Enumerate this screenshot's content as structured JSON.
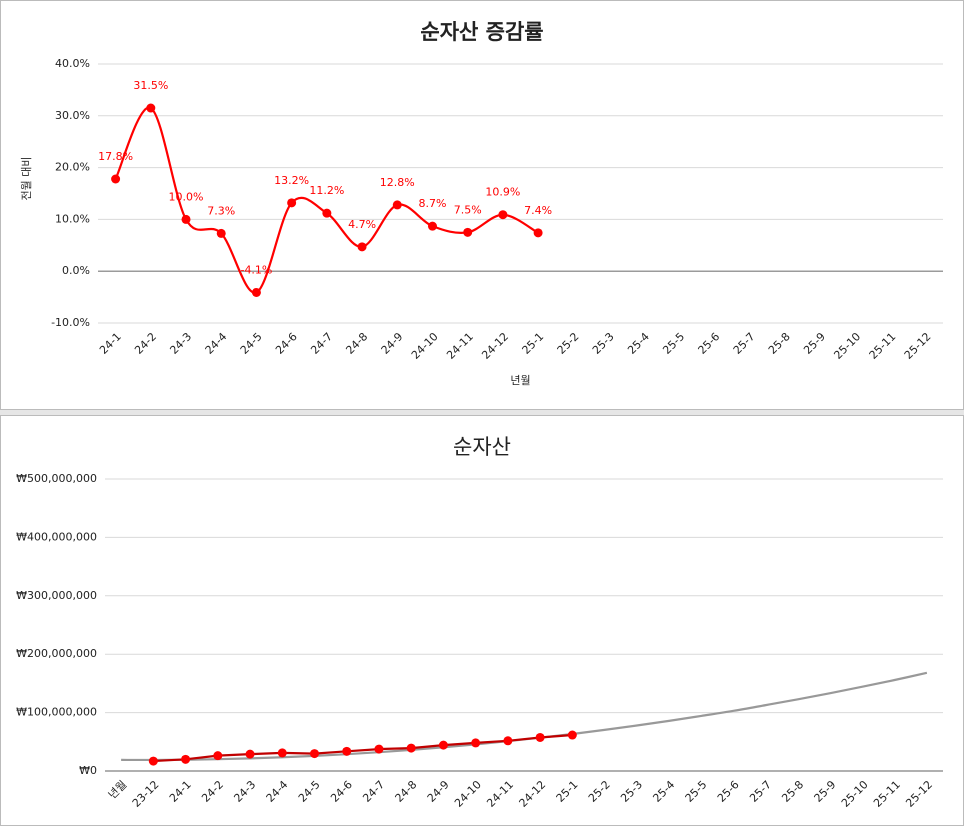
{
  "chart_data": [
    {
      "type": "line",
      "title": "순자산 증감률",
      "x_label": "년월",
      "y_label": "전월 대비",
      "categories": [
        "24-1",
        "24-2",
        "24-3",
        "24-4",
        "24-5",
        "24-6",
        "24-7",
        "24-8",
        "24-9",
        "24-10",
        "24-11",
        "24-12",
        "25-1",
        "25-2",
        "25-3",
        "25-4",
        "25-5",
        "25-6",
        "25-7",
        "25-8",
        "25-9",
        "25-10",
        "25-11",
        "25-12"
      ],
      "series": [
        {
          "color": "#ff0000",
          "marker_color": "#ff0000",
          "markers": true,
          "smooth": true,
          "values": [
            17.8,
            31.5,
            10.0,
            7.3,
            -4.1,
            13.2,
            11.2,
            4.7,
            12.8,
            8.7,
            7.5,
            10.9,
            7.4,
            null,
            null,
            null,
            null,
            null,
            null,
            null,
            null,
            null,
            null,
            null
          ],
          "value_labels": [
            "17.8%",
            "31.5%",
            "10.0%",
            "7.3%",
            "-4.1%",
            "13.2%",
            "11.2%",
            "4.7%",
            "12.8%",
            "8.7%",
            "7.5%",
            "10.9%",
            "7.4%",
            null,
            null,
            null,
            null,
            null,
            null,
            null,
            null,
            null,
            null,
            null
          ]
        }
      ],
      "ylim": [
        -10,
        40
      ],
      "yticks": [
        {
          "value": -10,
          "label": "-10.0%"
        },
        {
          "value": 0,
          "label": "0.0%"
        },
        {
          "value": 10,
          "label": "10.0%"
        },
        {
          "value": 20,
          "label": "20.0%"
        },
        {
          "value": 30,
          "label": "30.0%"
        },
        {
          "value": 40,
          "label": "40.0%"
        }
      ],
      "grid": true
    },
    {
      "type": "line",
      "title": "순자산",
      "categories": [
        "년월",
        "23-12",
        "24-1",
        "24-2",
        "24-3",
        "24-4",
        "24-5",
        "24-6",
        "24-7",
        "24-8",
        "24-9",
        "24-10",
        "24-11",
        "24-12",
        "25-1",
        "25-2",
        "25-3",
        "25-4",
        "25-5",
        "25-6",
        "25-7",
        "25-8",
        "25-9",
        "25-10",
        "25-11",
        "25-12"
      ],
      "series": [
        {
          "color": "#999999",
          "markers": false,
          "smooth": true,
          "values": [
            19000000,
            18900000,
            19300000,
            20200000,
            21600000,
            23500000,
            25900000,
            28800000,
            32200000,
            36200000,
            40600000,
            45600000,
            51000000,
            57000000,
            63400000,
            70400000,
            77900000,
            85800000,
            94300000,
            103000000,
            112800000,
            122800000,
            133300000,
            144300000,
            155800000,
            168100000
          ]
        },
        {
          "color": "#c00000",
          "marker_color": "#ff0000",
          "markers": true,
          "smooth": false,
          "values": [
            null,
            17000000,
            20000000,
            26300000,
            28900000,
            31000000,
            29800000,
            33700000,
            37500000,
            39200000,
            44300000,
            48100000,
            51700000,
            57400000,
            61600000,
            null,
            null,
            null,
            null,
            null,
            null,
            null,
            null,
            null,
            null,
            null
          ]
        }
      ],
      "ylim": [
        0,
        500000000
      ],
      "yticks": [
        {
          "value": 0,
          "label": "₩0"
        },
        {
          "value": 100000000,
          "label": "₩100,000,000"
        },
        {
          "value": 200000000,
          "label": "₩200,000,000"
        },
        {
          "value": 300000000,
          "label": "₩300,000,000"
        },
        {
          "value": 400000000,
          "label": "₩400,000,000"
        },
        {
          "value": 500000000,
          "label": "₩500,000,000"
        }
      ],
      "grid": true
    }
  ]
}
